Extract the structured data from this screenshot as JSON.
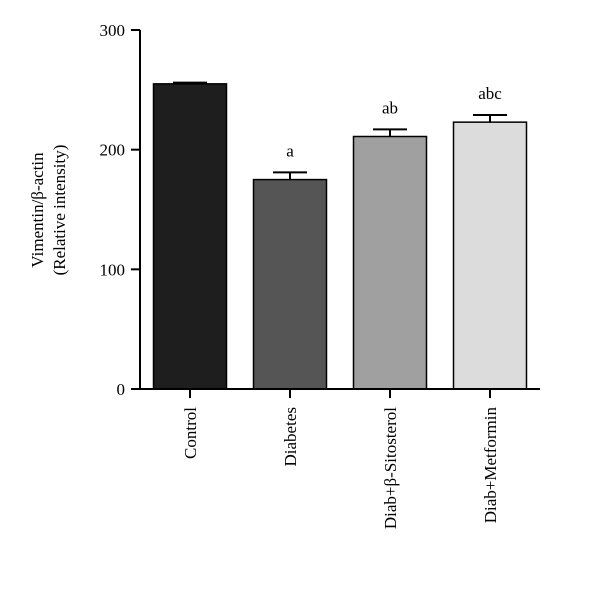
{
  "chart_data": {
    "type": "bar",
    "ylabel_line1": "Vimentin/β-actin",
    "ylabel_line2": "(Relative intensity)",
    "ylim": [
      0,
      300
    ],
    "yticks": [
      0,
      100,
      200,
      300
    ],
    "categories": [
      "Control",
      "Diabetes",
      "Diab+β-Sitosterol",
      "Diab+Metformin"
    ],
    "values": [
      255,
      175,
      211,
      223
    ],
    "errors": [
      1,
      6,
      6,
      6
    ],
    "annotations": [
      "",
      "a",
      "ab",
      "abc"
    ],
    "colors": [
      "#1e1e1e",
      "#555555",
      "#a0a0a0",
      "#dcdcdc"
    ],
    "grid": false,
    "legend": "none"
  }
}
